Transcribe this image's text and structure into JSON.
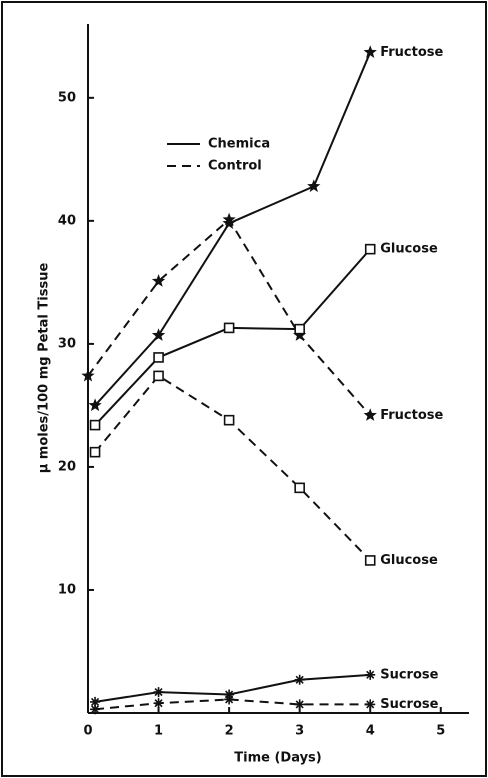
{
  "chart_data": {
    "type": "line",
    "xlabel": "Time (Days)",
    "ylabel": "μ moles/100 mg Petal Tissue",
    "xlim": [
      0,
      5.4
    ],
    "ylim": [
      0,
      56
    ],
    "xticks": [
      0,
      1,
      2,
      3,
      4,
      5
    ],
    "yticks": [
      10,
      20,
      30,
      40,
      50
    ],
    "color": "#111111",
    "legend": [
      {
        "label": "Chemica",
        "style": "solid"
      },
      {
        "label": "Control",
        "style": "dashed"
      }
    ],
    "series": [
      {
        "name": "Fructose",
        "style": "solid",
        "marker": "star",
        "x": [
          0.1,
          1,
          2,
          3.2,
          4
        ],
        "values": [
          25.0,
          30.7,
          39.8,
          42.8,
          53.7
        ]
      },
      {
        "name": "Fructose",
        "style": "dashed",
        "marker": "star",
        "x": [
          0,
          1,
          2,
          3,
          4
        ],
        "values": [
          27.4,
          35.1,
          40.1,
          30.7,
          24.2
        ]
      },
      {
        "name": "Glucose",
        "style": "solid",
        "marker": "square",
        "x": [
          0.1,
          1,
          2,
          3,
          4
        ],
        "values": [
          23.4,
          28.9,
          31.3,
          31.2,
          37.7
        ]
      },
      {
        "name": "Glucose",
        "style": "dashed",
        "marker": "square",
        "x": [
          0.1,
          1,
          2,
          3,
          4
        ],
        "values": [
          21.2,
          27.4,
          23.8,
          18.3,
          12.4
        ]
      },
      {
        "name": "Sucrose",
        "style": "solid",
        "marker": "asterisk",
        "x": [
          0.1,
          1,
          2,
          3,
          4
        ],
        "values": [
          0.9,
          1.7,
          1.5,
          2.7,
          3.1
        ]
      },
      {
        "name": "Sucrose",
        "style": "dashed",
        "marker": "asterisk",
        "x": [
          0.1,
          1,
          2,
          3,
          4
        ],
        "values": [
          0.3,
          0.8,
          1.1,
          0.7,
          0.7
        ]
      }
    ]
  }
}
